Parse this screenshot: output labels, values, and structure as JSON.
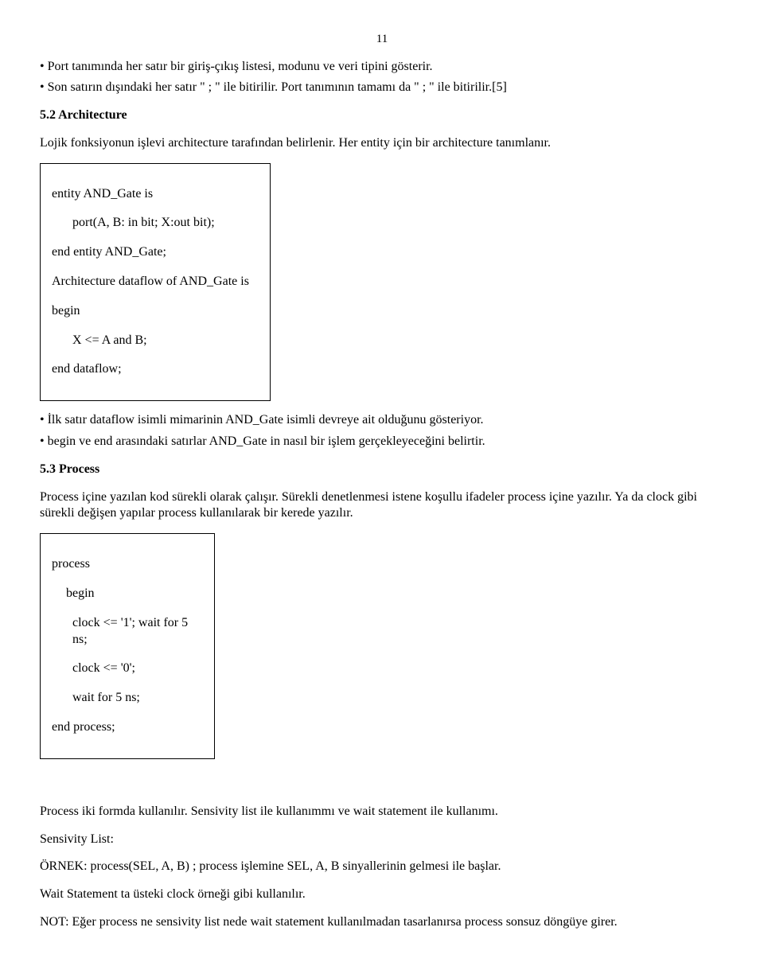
{
  "page_number": "11",
  "bullets_top": [
    "• Port tanımında her satır bir giriş-çıkış listesi, modunu ve veri tipini gösterir.",
    "• Son satırın dışındaki her satır \" ; \" ile bitirilir. Port tanımının tamamı da \" ; \" ile bitirilir.[5]"
  ],
  "heading_arch": "5.2 Architecture",
  "arch_intro": "Lojik fonksiyonun işlevi architecture tarafından belirlenir. Her entity için bir architecture tanımlanır.",
  "codebox1": {
    "l1": "entity AND_Gate is",
    "l2": "port(A, B: in bit; X:out bit);",
    "l3": "end entity AND_Gate;",
    "l4": "Architecture dataflow of AND_Gate is",
    "l5": "begin",
    "l6": "X <= A and B;",
    "l7": "end dataflow;"
  },
  "bullets_mid": [
    "• İlk satır dataflow isimli mimarinin AND_Gate isimli devreye ait olduğunu gösteriyor.",
    "• begin ve end arasındaki satırlar AND_Gate in nasıl bir işlem gerçekleyeceğini belirtir."
  ],
  "heading_process": "5.3 Process",
  "process_intro": "Process içine yazılan kod sürekli olarak çalışır. Sürekli denetlenmesi istene koşullu ifadeler process içine yazılır. Ya da clock gibi sürekli değişen yapılar process kullanılarak bir kerede yazılır.",
  "codebox2": {
    "l1": "process",
    "l2": "begin",
    "l3": "clock <= '1'; wait for 5 ns;",
    "l4": "clock <= '0';",
    "l5": "wait for 5 ns;",
    "l6": "end process;"
  },
  "para_forms": "Process iki formda kullanılır.  Sensivity list ile kullanımmı ve wait statement ile kullanımı.",
  "para_senslist_label": "Sensivity List:",
  "para_ornek": "ÖRNEK:  process(SEL, A, B) ; process işlemine SEL, A, B sinyallerinin gelmesi ile başlar.",
  "para_wait": "Wait Statement ta üsteki clock örneği gibi kullanılır.",
  "para_not": "NOT: Eğer process ne sensivity list nede wait statement kullanılmadan tasarlanırsa process sonsuz döngüye girer."
}
